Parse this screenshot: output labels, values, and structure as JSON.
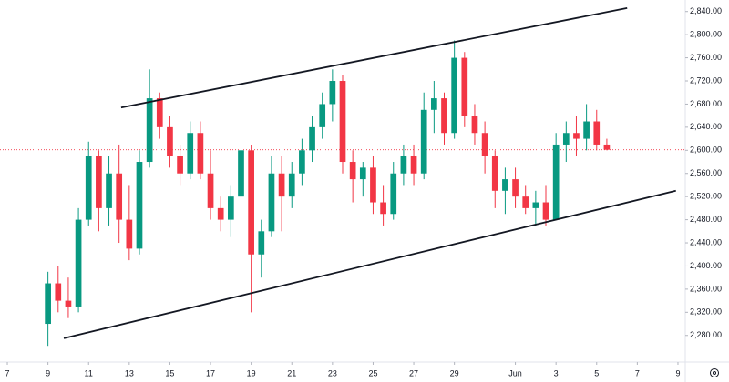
{
  "chart_data": {
    "type": "candlestick",
    "x": [
      2,
      2.5,
      3,
      3.5,
      4,
      4.5,
      5,
      5.5,
      6,
      6.5,
      7,
      7.5,
      8,
      8.5,
      9,
      9.5,
      10,
      10.5,
      11,
      11.5,
      12,
      12.5,
      13,
      13.5,
      14,
      14.5,
      15,
      15.5,
      16,
      16.5,
      17,
      17.5,
      18,
      18.5,
      19,
      19.5,
      20,
      20.5,
      21,
      21.5,
      22,
      22.5,
      23,
      23.5,
      24,
      24.5,
      25,
      25.5,
      26,
      26.5,
      27,
      27.5,
      28,
      28.5,
      29,
      29.5
    ],
    "open": [
      2300,
      2370,
      2340,
      2330,
      2480,
      2590,
      2500,
      2560,
      2480,
      2430,
      2580,
      2690,
      2640,
      2590,
      2560,
      2630,
      2560,
      2500,
      2480,
      2520,
      2600,
      2420,
      2460,
      2560,
      2520,
      2560,
      2600,
      2640,
      2680,
      2720,
      2580,
      2550,
      2570,
      2510,
      2490,
      2560,
      2590,
      2560,
      2670,
      2690,
      2630,
      2760,
      2660,
      2630,
      2590,
      2530,
      2550,
      2520,
      2500,
      2510,
      2480,
      2610,
      2630,
      2620,
      2650,
      2610
    ],
    "high": [
      2390,
      2400,
      2380,
      2500,
      2615,
      2600,
      2590,
      2610,
      2540,
      2600,
      2740,
      2700,
      2660,
      2610,
      2650,
      2650,
      2600,
      2520,
      2540,
      2610,
      2610,
      2480,
      2590,
      2590,
      2580,
      2620,
      2660,
      2700,
      2740,
      2730,
      2600,
      2580,
      2590,
      2540,
      2580,
      2610,
      2610,
      2700,
      2720,
      2700,
      2790,
      2770,
      2680,
      2650,
      2600,
      2570,
      2570,
      2540,
      2530,
      2540,
      2630,
      2650,
      2660,
      2680,
      2670,
      2620
    ],
    "low": [
      2262,
      2320,
      2310,
      2320,
      2470,
      2460,
      2470,
      2440,
      2410,
      2420,
      2570,
      2620,
      2570,
      2540,
      2550,
      2550,
      2480,
      2460,
      2450,
      2490,
      2320,
      2380,
      2450,
      2460,
      2500,
      2540,
      2580,
      2620,
      2650,
      2560,
      2510,
      2520,
      2490,
      2470,
      2480,
      2540,
      2540,
      2550,
      2630,
      2610,
      2620,
      2640,
      2610,
      2560,
      2500,
      2490,
      2500,
      2490,
      2470,
      2470,
      2480,
      2580,
      2590,
      2600,
      2600,
      2600
    ],
    "close": [
      2370,
      2340,
      2330,
      2480,
      2590,
      2500,
      2560,
      2480,
      2430,
      2580,
      2690,
      2640,
      2590,
      2560,
      2630,
      2560,
      2500,
      2480,
      2520,
      2600,
      2420,
      2460,
      2560,
      2520,
      2560,
      2600,
      2640,
      2680,
      2720,
      2580,
      2550,
      2570,
      2510,
      2490,
      2560,
      2590,
      2560,
      2670,
      2690,
      2630,
      2760,
      2660,
      2630,
      2590,
      2530,
      2550,
      2520,
      2500,
      2510,
      2480,
      2610,
      2630,
      2620,
      2650,
      2610,
      2601
    ],
    "up_color": "#089981",
    "down_color": "#f23645",
    "xlim": [
      -0.36,
      33.36
    ],
    "xticks": [
      {
        "value": 0,
        "label": "7"
      },
      {
        "value": 2,
        "label": "9"
      },
      {
        "value": 4,
        "label": "11"
      },
      {
        "value": 6,
        "label": "13"
      },
      {
        "value": 8,
        "label": "15"
      },
      {
        "value": 10,
        "label": "17"
      },
      {
        "value": 12,
        "label": "19"
      },
      {
        "value": 14,
        "label": "21"
      },
      {
        "value": 16,
        "label": "23"
      },
      {
        "value": 18,
        "label": "25"
      },
      {
        "value": 20,
        "label": "27"
      },
      {
        "value": 22,
        "label": "29"
      },
      {
        "value": 25,
        "label": "Jun"
      },
      {
        "value": 27,
        "label": "3"
      },
      {
        "value": 29,
        "label": "5"
      },
      {
        "value": 31,
        "label": "7"
      },
      {
        "value": 33,
        "label": "9"
      }
    ],
    "ylim": [
      2234,
      2860
    ],
    "yticks": [
      {
        "value": 2280,
        "label": "2,280.00"
      },
      {
        "value": 2320,
        "label": "2,320.00"
      },
      {
        "value": 2360,
        "label": "2,360.00"
      },
      {
        "value": 2400,
        "label": "2,400.00"
      },
      {
        "value": 2440,
        "label": "2,440.00"
      },
      {
        "value": 2480,
        "label": "2,480.00"
      },
      {
        "value": 2520,
        "label": "2,520.00"
      },
      {
        "value": 2560,
        "label": "2,560.00"
      },
      {
        "value": 2600,
        "label": "2,600.00"
      },
      {
        "value": 2640,
        "label": "2,640.00"
      },
      {
        "value": 2680,
        "label": "2,680.00"
      },
      {
        "value": 2720,
        "label": "2,720.00"
      },
      {
        "value": 2760,
        "label": "2,760.00"
      },
      {
        "value": 2800,
        "label": "2,800.00"
      },
      {
        "value": 2840,
        "label": "2,840.00"
      }
    ],
    "last_price": 2601,
    "trendlines": [
      {
        "x": [
          5.6,
          30.5
        ],
        "y": [
          2674,
          2846
        ]
      },
      {
        "x": [
          2.78,
          32.9
        ],
        "y": [
          2275,
          2530
        ]
      }
    ],
    "grid": false
  }
}
